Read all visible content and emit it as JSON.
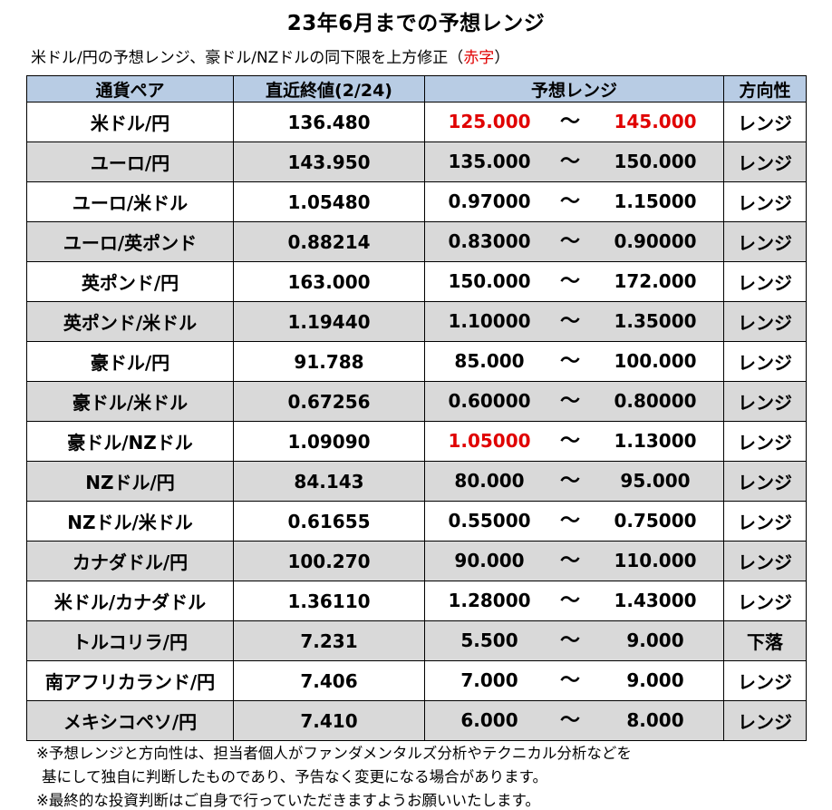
{
  "title": "23年6月までの予想レンジ",
  "subtitle": {
    "text": "米ドル/円の予想レンジ、豪ドル/NZドルの同下限を上方修正（",
    "red": "赤字",
    "close": "）"
  },
  "headers": {
    "pair": "通貨ペア",
    "latest": "直近終値(2/24)",
    "range": "予想レンジ",
    "direction": "方向性"
  },
  "tilde": "～",
  "rows": [
    {
      "pair": "米ドル/円",
      "latest": "136.480",
      "low": "125.000",
      "high": "145.000",
      "direction": "レンジ",
      "low_red": true,
      "high_red": true
    },
    {
      "pair": "ユーロ/円",
      "latest": "143.950",
      "low": "135.000",
      "high": "150.000",
      "direction": "レンジ",
      "low_red": false,
      "high_red": false
    },
    {
      "pair": "ユーロ/米ドル",
      "latest": "1.05480",
      "low": "0.97000",
      "high": "1.15000",
      "direction": "レンジ",
      "low_red": false,
      "high_red": false
    },
    {
      "pair": "ユーロ/英ポンド",
      "latest": "0.88214",
      "low": "0.83000",
      "high": "0.90000",
      "direction": "レンジ",
      "low_red": false,
      "high_red": false
    },
    {
      "pair": "英ポンド/円",
      "latest": "163.000",
      "low": "150.000",
      "high": "172.000",
      "direction": "レンジ",
      "low_red": false,
      "high_red": false
    },
    {
      "pair": "英ポンド/米ドル",
      "latest": "1.19440",
      "low": "1.10000",
      "high": "1.35000",
      "direction": "レンジ",
      "low_red": false,
      "high_red": false
    },
    {
      "pair": "豪ドル/円",
      "latest": "91.788",
      "low": "85.000",
      "high": "100.000",
      "direction": "レンジ",
      "low_red": false,
      "high_red": false
    },
    {
      "pair": "豪ドル/米ドル",
      "latest": "0.67256",
      "low": "0.60000",
      "high": "0.80000",
      "direction": "レンジ",
      "low_red": false,
      "high_red": false
    },
    {
      "pair": "豪ドル/NZドル",
      "latest": "1.09090",
      "low": "1.05000",
      "high": "1.13000",
      "direction": "レンジ",
      "low_red": true,
      "high_red": false
    },
    {
      "pair": "NZドル/円",
      "latest": "84.143",
      "low": "80.000",
      "high": "95.000",
      "direction": "レンジ",
      "low_red": false,
      "high_red": false
    },
    {
      "pair": "NZドル/米ドル",
      "latest": "0.61655",
      "low": "0.55000",
      "high": "0.75000",
      "direction": "レンジ",
      "low_red": false,
      "high_red": false
    },
    {
      "pair": "カナダドル/円",
      "latest": "100.270",
      "low": "90.000",
      "high": "110.000",
      "direction": "レンジ",
      "low_red": false,
      "high_red": false
    },
    {
      "pair": "米ドル/カナダドル",
      "latest": "1.36110",
      "low": "1.28000",
      "high": "1.43000",
      "direction": "レンジ",
      "low_red": false,
      "high_red": false
    },
    {
      "pair": "トルコリラ/円",
      "latest": "7.231",
      "low": "5.500",
      "high": "9.000",
      "direction": "下落",
      "low_red": false,
      "high_red": false
    },
    {
      "pair": "南アフリカランド/円",
      "latest": "7.406",
      "low": "7.000",
      "high": "9.000",
      "direction": "レンジ",
      "low_red": false,
      "high_red": false
    },
    {
      "pair": "メキシコペソ/円",
      "latest": "7.410",
      "low": "6.000",
      "high": "8.000",
      "direction": "レンジ",
      "low_red": false,
      "high_red": false
    }
  ],
  "notes": [
    "※予想レンジと方向性は、担当者個人がファンダメンタルズ分析やテクニカル分析などを",
    "基にして独自に判断したものであり、予告なく変更になる場合があります。",
    "※最終的な投資判断はご自身で行っていただきますようお願いいたします。"
  ],
  "colors": {
    "header_bg": "#b8cce4",
    "alt_row_bg": "#d9d9d9",
    "red": "#e00000"
  }
}
